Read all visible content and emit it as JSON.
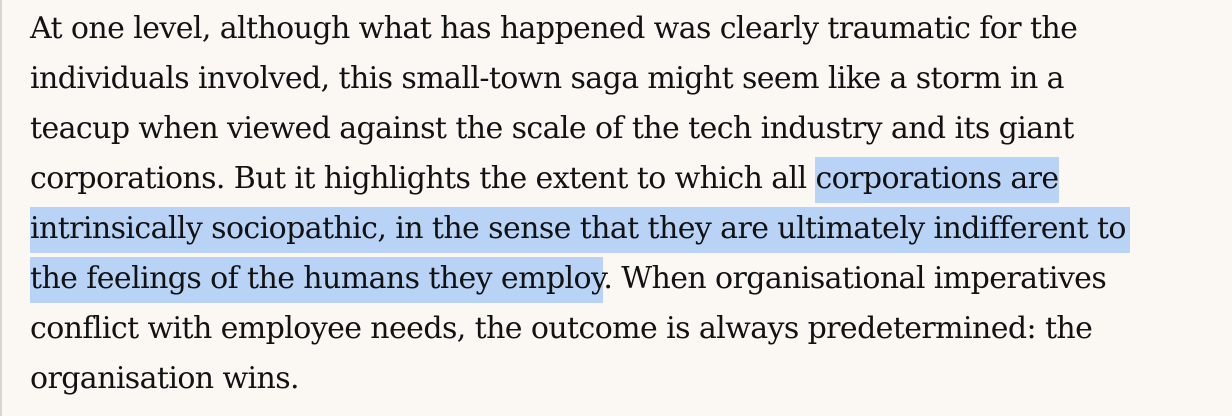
{
  "article": {
    "lines": [
      {
        "text": "At one level, although what has happened was clearly traumatic for the"
      },
      {
        "text": "individuals involved, this small-town saga might seem like a storm in a"
      },
      {
        "text": "teacup when viewed against the scale of the tech industry and its giant"
      },
      {
        "pre": "corporations. But it highlights the extent to which all ",
        "highlight": "corporations are"
      },
      {
        "highlight": "intrinsically sociopathic, in the sense that they are ultimately indifferent to"
      },
      {
        "highlight": "the feelings of the humans they employ",
        "post": ". When organisational imperatives"
      },
      {
        "text": "conflict with employee needs, the outcome is always predetermined: the"
      },
      {
        "text": "organisation wins."
      }
    ],
    "selection_color": "#b9d3f7",
    "background_color": "#fbf8f4",
    "text_color": "#121212"
  }
}
